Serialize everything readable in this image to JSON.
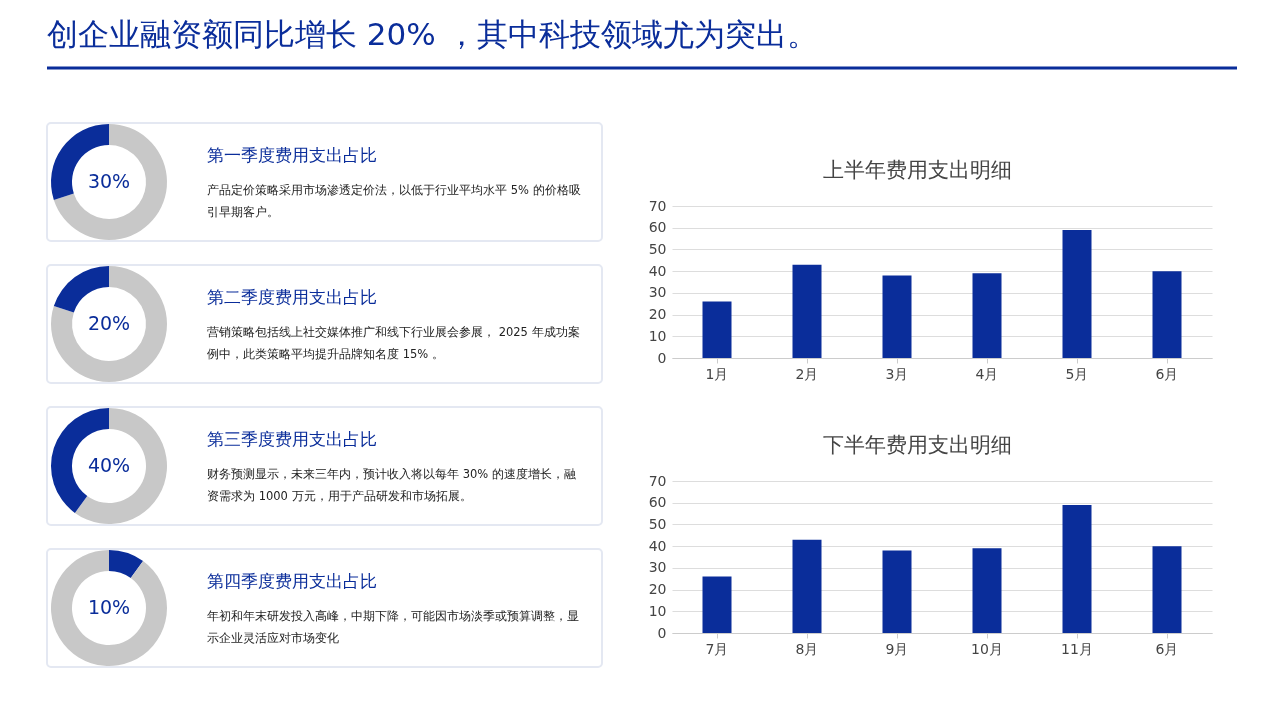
{
  "chart_data": [
    {
      "type": "other",
      "title": "创企业融资额同比增长 20% ，其中科技领域尤为突出。"
    },
    {
      "type": "donut",
      "title": "第一季度费用支出占比",
      "annotations": [
        "产品定价策略采用市场渗透定价法，以低于行业平均水平 5% 的价格吸引早期客户。"
      ],
      "categories": [
        null,
        null
      ],
      "values": [
        70,
        30
      ],
      "colors": [
        "#c8c8c8",
        "#0a2d9a"
      ],
      "value_labels": [
        null,
        "30%"
      ]
    },
    {
      "type": "donut",
      "title": "第二季度费用支出占比",
      "annotations": [
        "营销策略包括线上社交媒体推广和线下行业展会参展， 2025 年成功案例中，此类策略平均提升品牌知名度 15% 。"
      ],
      "categories": [
        null,
        null
      ],
      "values": [
        80,
        20
      ],
      "colors": [
        "#c8c8c8",
        "#0a2d9a"
      ],
      "value_labels": [
        null,
        "20%"
      ]
    },
    {
      "type": "donut",
      "title": "第三季度费用支出占比",
      "annotations": [
        "财务预测显示，未来三年内，预计收入将以每年 30% 的速度增长，融资需求为 1000 万元，用于产品研发和市场拓展。"
      ],
      "categories": [
        null,
        null
      ],
      "values": [
        60,
        40
      ],
      "colors": [
        "#c8c8c8",
        "#0a2d9a"
      ],
      "value_labels": [
        null,
        "40%"
      ]
    },
    {
      "type": "donut",
      "title": "第四季度费用支出占比",
      "annotations": [
        "年初和年末研发投入高峰，中期下降，可能因市场淡季或预算调整，显示企业灵活应对市场变化"
      ],
      "categories": [
        null,
        null
      ],
      "values": [
        10,
        90
      ],
      "colors": [
        "#0a2d9a",
        "#c8c8c8"
      ],
      "value_labels": [
        "10%",
        null
      ]
    },
    {
      "type": "bar",
      "title": "上半年费用支出明细",
      "categories": [
        "1月",
        "2月",
        "3月",
        "4月",
        "5月",
        "6月"
      ],
      "values": [
        26,
        43,
        38,
        39,
        59,
        40
      ],
      "color": "#0a2d9a",
      "ylim": [
        0,
        70
      ],
      "yticks": [
        0,
        10,
        20,
        30,
        40,
        50,
        60,
        70
      ],
      "grid": "y"
    },
    {
      "type": "bar",
      "title": "下半年费用支出明细",
      "categories": [
        "7月",
        "8月",
        "9月",
        "10月",
        "11月",
        "6月"
      ],
      "values": [
        26,
        43,
        38,
        39,
        59,
        40
      ],
      "color": "#0a2d9a",
      "ylim": [
        0,
        70
      ],
      "yticks": [
        0,
        10,
        20,
        30,
        40,
        50,
        60,
        70
      ],
      "grid": "y"
    }
  ]
}
